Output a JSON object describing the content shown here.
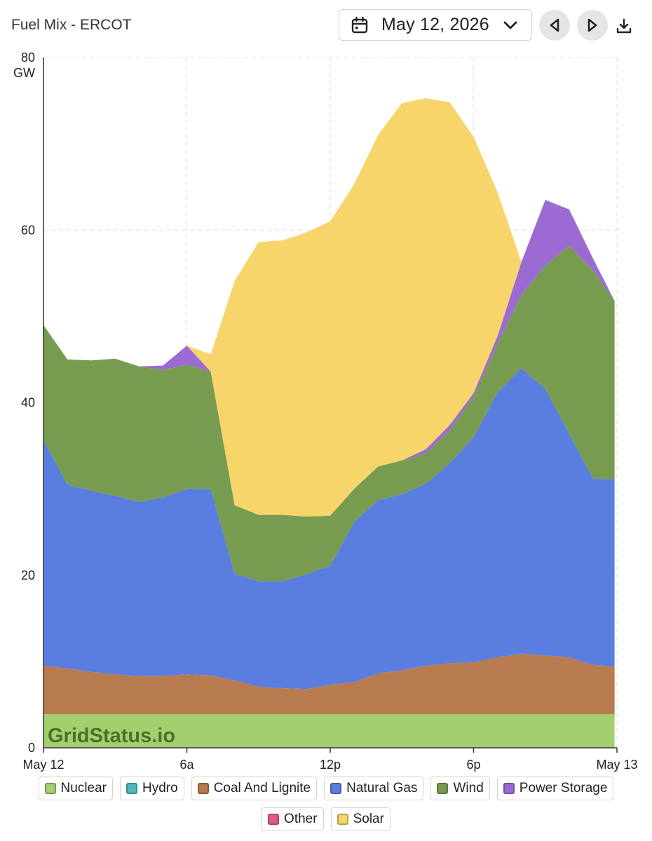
{
  "header": {
    "title": "Fuel Mix - ERCOT",
    "date": "May 12, 2026"
  },
  "chart_data": {
    "type": "area",
    "stacked": true,
    "y_unit": "GW",
    "ylim": [
      0,
      80
    ],
    "y_ticks": [
      "0",
      "20",
      "40",
      "60",
      "80"
    ],
    "x_hours": [
      0,
      24
    ],
    "x_ticks": [
      {
        "hour": 0,
        "label": "May 12"
      },
      {
        "hour": 6,
        "label": "6a"
      },
      {
        "hour": 12,
        "label": "12p"
      },
      {
        "hour": 18,
        "label": "6p"
      },
      {
        "hour": 24,
        "label": "May 13"
      }
    ],
    "grid": true,
    "legend_position": "bottom",
    "x": [
      0,
      1,
      2,
      3,
      4,
      5,
      6,
      7,
      8,
      9,
      10,
      11,
      12,
      13,
      14,
      15,
      16,
      17,
      18,
      19,
      20,
      21,
      22,
      23,
      23.9
    ],
    "series": [
      {
        "name": "Nuclear",
        "color": "#a3cf6e",
        "values": [
          3.9,
          3.9,
          3.9,
          3.9,
          3.9,
          3.9,
          3.9,
          3.9,
          3.9,
          3.9,
          3.9,
          3.9,
          3.9,
          3.9,
          3.9,
          3.9,
          3.9,
          3.9,
          3.9,
          3.9,
          3.9,
          3.9,
          3.9,
          3.9,
          3.9
        ]
      },
      {
        "name": "Hydro",
        "color": "#4fb8b8",
        "values": [
          0,
          0,
          0,
          0,
          0,
          0,
          0,
          0,
          0,
          0,
          0,
          0,
          0,
          0,
          0,
          0,
          0,
          0,
          0,
          0,
          0,
          0,
          0,
          0,
          0
        ]
      },
      {
        "name": "Coal And Lignite",
        "color": "#b87a4f",
        "values": [
          5.6,
          5.3,
          4.9,
          4.6,
          4.4,
          4.4,
          4.6,
          4.5,
          3.9,
          3.2,
          3.0,
          2.9,
          3.4,
          3.7,
          4.7,
          5.1,
          5.6,
          5.9,
          6.0,
          6.6,
          7.0,
          6.8,
          6.6,
          5.7,
          5.5
        ]
      },
      {
        "name": "Natural Gas",
        "color": "#5a7ee0",
        "values": [
          26.2,
          21.3,
          21.0,
          20.7,
          20.2,
          20.7,
          21.5,
          21.6,
          12.4,
          12.2,
          12.4,
          13.3,
          13.8,
          18.6,
          20.1,
          20.4,
          21.1,
          23.2,
          26.1,
          30.7,
          33.1,
          30.9,
          25.9,
          21.6,
          21.7
        ]
      },
      {
        "name": "Wind",
        "color": "#779c4f",
        "values": [
          13.3,
          14.5,
          15.1,
          15.9,
          15.7,
          14.8,
          14.4,
          13.6,
          7.9,
          7.7,
          7.7,
          6.7,
          5.8,
          3.8,
          3.9,
          3.9,
          3.5,
          3.8,
          4.7,
          5.6,
          8.5,
          14.3,
          21.8,
          24.1,
          20.7
        ]
      },
      {
        "name": "Power Storage",
        "color": "#9b6bd3",
        "values": [
          0,
          0,
          0,
          0,
          0,
          0.5,
          2.2,
          0,
          0,
          0,
          0,
          0,
          0,
          0,
          0,
          0,
          0.5,
          0.6,
          0.4,
          0.9,
          3.8,
          7.6,
          4.2,
          1.4,
          0
        ]
      },
      {
        "name": "Other",
        "color": "#e05a86",
        "values": [
          0,
          0,
          0,
          0,
          0,
          0,
          0,
          0,
          0,
          0,
          0,
          0,
          0,
          0,
          0,
          0,
          0,
          0,
          0,
          0,
          0,
          0,
          0,
          0,
          0
        ]
      },
      {
        "name": "Solar",
        "color": "#f7d56b",
        "values": [
          0,
          0,
          0,
          0,
          0,
          0,
          0,
          2.0,
          26.0,
          31.6,
          31.8,
          32.9,
          34.1,
          35.3,
          38.4,
          41.4,
          40.7,
          37.4,
          29.7,
          16.7,
          0,
          0,
          0,
          0,
          0
        ]
      }
    ],
    "watermark": "GridStatus.io"
  },
  "legend": {
    "row1": [
      {
        "label": "Nuclear",
        "color": "#a3cf6e"
      },
      {
        "label": "Hydro",
        "color": "#4fb8b8"
      },
      {
        "label": "Coal And Lignite",
        "color": "#b87a4f"
      },
      {
        "label": "Natural Gas",
        "color": "#5a7ee0"
      },
      {
        "label": "Wind",
        "color": "#779c4f"
      },
      {
        "label": "Power Storage",
        "color": "#9b6bd3"
      }
    ],
    "row2": [
      {
        "label": "Other",
        "color": "#e05a86"
      },
      {
        "label": "Solar",
        "color": "#f7d56b"
      }
    ]
  }
}
